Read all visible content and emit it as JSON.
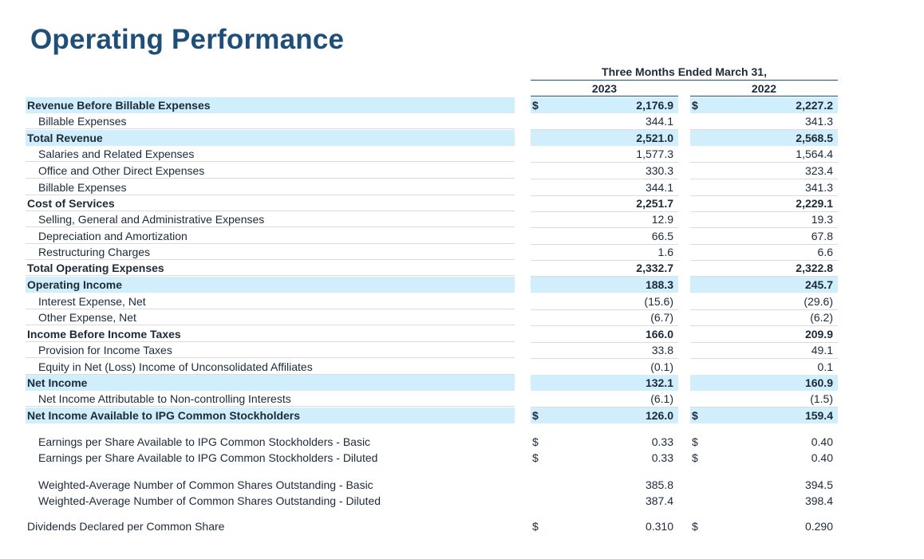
{
  "title": "Operating Performance",
  "header": {
    "period": "Three Months Ended March 31,",
    "year1": "2023",
    "year2": "2022"
  },
  "rows": [
    {
      "label": "Revenue Before Billable Expenses",
      "cur1": "$",
      "v1": "2,176.9",
      "cur2": "$",
      "v2": "2,227.2"
    },
    {
      "label": "Billable Expenses",
      "cur1": "",
      "v1": "344.1",
      "cur2": "",
      "v2": "341.3"
    },
    {
      "label": "Total Revenue",
      "cur1": "",
      "v1": "2,521.0",
      "cur2": "",
      "v2": "2,568.5"
    },
    {
      "label": "Salaries and Related Expenses",
      "cur1": "",
      "v1": "1,577.3",
      "cur2": "",
      "v2": "1,564.4"
    },
    {
      "label": "Office and Other Direct Expenses",
      "cur1": "",
      "v1": "330.3",
      "cur2": "",
      "v2": "323.4"
    },
    {
      "label": "Billable Expenses",
      "cur1": "",
      "v1": "344.1",
      "cur2": "",
      "v2": "341.3"
    },
    {
      "label": "Cost of Services",
      "cur1": "",
      "v1": "2,251.7",
      "cur2": "",
      "v2": "2,229.1"
    },
    {
      "label": "Selling, General and Administrative Expenses",
      "cur1": "",
      "v1": "12.9",
      "cur2": "",
      "v2": "19.3"
    },
    {
      "label": "Depreciation and Amortization",
      "cur1": "",
      "v1": "66.5",
      "cur2": "",
      "v2": "67.8"
    },
    {
      "label": "Restructuring Charges",
      "cur1": "",
      "v1": "1.6",
      "cur2": "",
      "v2": "6.6"
    },
    {
      "label": "Total Operating Expenses",
      "cur1": "",
      "v1": "2,332.7",
      "cur2": "",
      "v2": "2,322.8"
    },
    {
      "label": "Operating Income",
      "cur1": "",
      "v1": "188.3",
      "cur2": "",
      "v2": "245.7"
    },
    {
      "label": "Interest Expense, Net",
      "cur1": "",
      "v1": "(15.6)",
      "cur2": "",
      "v2": "(29.6)"
    },
    {
      "label": "Other Expense, Net",
      "cur1": "",
      "v1": "(6.7)",
      "cur2": "",
      "v2": "(6.2)"
    },
    {
      "label": "Income Before Income Taxes",
      "cur1": "",
      "v1": "166.0",
      "cur2": "",
      "v2": "209.9"
    },
    {
      "label": "Provision for Income Taxes",
      "cur1": "",
      "v1": "33.8",
      "cur2": "",
      "v2": "49.1"
    },
    {
      "label": "Equity in Net (Loss) Income of Unconsolidated Affiliates",
      "cur1": "",
      "v1": "(0.1)",
      "cur2": "",
      "v2": "0.1"
    },
    {
      "label": "Net Income",
      "cur1": "",
      "v1": "132.1",
      "cur2": "",
      "v2": "160.9"
    },
    {
      "label": "Net Income Attributable to Non-controlling Interests",
      "cur1": "",
      "v1": "(6.1)",
      "cur2": "",
      "v2": "(1.5)"
    },
    {
      "label": "Net Income Available to IPG Common Stockholders",
      "cur1": "$",
      "v1": "126.0",
      "cur2": "$",
      "v2": "159.4"
    },
    {
      "label": "Earnings per Share Available to IPG Common Stockholders - Basic",
      "cur1": "$",
      "v1": "0.33",
      "cur2": "$",
      "v2": "0.40"
    },
    {
      "label": "Earnings per Share Available to IPG Common Stockholders - Diluted",
      "cur1": "$",
      "v1": "0.33",
      "cur2": "$",
      "v2": "0.40"
    },
    {
      "label": "Weighted-Average Number of Common Shares Outstanding - Basic",
      "cur1": "",
      "v1": "385.8",
      "cur2": "",
      "v2": "394.5"
    },
    {
      "label": "Weighted-Average Number of Common Shares Outstanding - Diluted",
      "cur1": "",
      "v1": "387.4",
      "cur2": "",
      "v2": "398.4"
    },
    {
      "label": "Dividends Declared per Common Share",
      "cur1": "$",
      "v1": "0.310",
      "cur2": "$",
      "v2": "0.290"
    }
  ]
}
